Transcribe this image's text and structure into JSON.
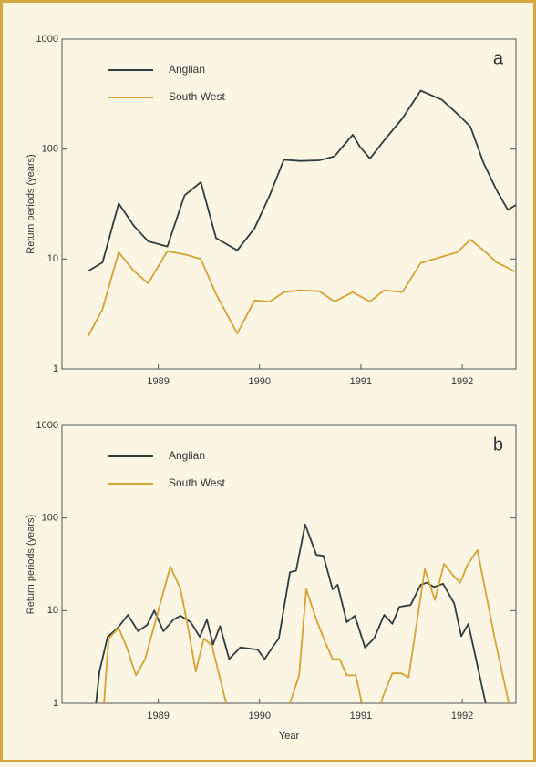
{
  "chart_data": [
    {
      "type": "line",
      "annotation": "a",
      "ylabel": "Return periods (years)",
      "log_y": true,
      "legend": "upper left",
      "x": [
        1988.31,
        1988.45,
        1988.61,
        1988.76,
        1988.9,
        1989.09,
        1989.26,
        1989.42,
        1989.57,
        1989.78,
        1989.95,
        1990.1,
        1990.24,
        1990.4,
        1990.59,
        1990.74,
        1990.92,
        1990.99,
        1991.09,
        1991.23,
        1991.41,
        1991.59,
        1991.8,
        1991.95,
        1992.08,
        1992.21,
        1992.34,
        1992.45,
        1992.53
      ],
      "series": [
        {
          "name": "Anglian",
          "color": "#2f3d3c",
          "values": [
            7.8,
            9.3,
            32,
            20,
            14.5,
            13,
            38,
            50,
            15.5,
            12,
            19,
            38,
            80,
            78,
            79,
            86,
            135,
            105,
            82,
            120,
            190,
            340,
            280,
            210,
            160,
            75,
            42,
            28,
            31
          ]
        },
        {
          "name": "South West",
          "color": "#d5a236",
          "values": [
            2.0,
            3.5,
            11.5,
            7.8,
            6,
            11.8,
            11,
            10,
            4.8,
            2.1,
            4.2,
            4.1,
            5,
            5.2,
            5.1,
            4.1,
            5.0,
            4.6,
            4.1,
            5.2,
            5.0,
            9.2,
            10.5,
            11.5,
            15,
            12,
            9.3,
            8.3,
            7.6
          ]
        }
      ],
      "xlim": [
        1988.05,
        1992.53
      ],
      "xticks": [
        1989,
        1990,
        1991,
        1992
      ],
      "ylim": [
        1,
        1000
      ],
      "yticks": [
        1,
        10,
        100,
        1000
      ]
    },
    {
      "type": "line",
      "annotation": "b",
      "xlabel": "Year",
      "ylabel": "Return periods (years)",
      "log_y": true,
      "legend": "upper left",
      "series": [
        {
          "name": "Anglian",
          "color": "#2f3d3c",
          "x": [
            1988.37,
            1988.42,
            1988.5,
            1988.6,
            1988.7,
            1988.8,
            1988.89,
            1988.96,
            1989.05,
            1989.15,
            1989.22,
            1989.32,
            1989.41,
            1989.48,
            1989.54,
            1989.61,
            1989.7,
            1989.81,
            1989.98,
            1990.05,
            1990.14,
            1990.19,
            1990.3,
            1990.36,
            1990.45,
            1990.56,
            1990.63,
            1990.72,
            1990.77,
            1990.86,
            1990.94,
            1991.04,
            1991.13,
            1991.23,
            1991.31,
            1991.38,
            1991.49,
            1991.59,
            1991.65,
            1991.72,
            1991.81,
            1991.92,
            1991.99,
            1992.06,
            1992.23,
            1992.28
          ],
          "values": [
            0.7,
            2.2,
            5.2,
            6.5,
            9,
            6,
            7,
            10,
            6,
            8,
            8.8,
            7.5,
            5.2,
            8,
            4.3,
            6.8,
            3,
            4,
            3.8,
            3,
            4.2,
            5,
            26,
            27,
            85,
            40,
            39,
            17,
            19,
            7.5,
            8.8,
            4,
            5,
            9,
            7.2,
            11,
            11.5,
            19,
            20,
            18,
            19.5,
            12,
            5.3,
            7.2,
            1.0,
            0.7
          ]
        },
        {
          "name": "South West",
          "color": "#d5a236",
          "x": [
            1988.45,
            1988.51,
            1988.61,
            1988.69,
            1988.78,
            1988.87,
            1989.12,
            1989.22,
            1989.3,
            1989.37,
            1989.45,
            1989.53,
            1989.67,
            1989.74,
            1990.23,
            1990.3,
            1990.39,
            1990.46,
            1990.56,
            1990.65,
            1990.72,
            1990.79,
            1990.86,
            1990.95,
            1991.01,
            1991.06,
            1991.15,
            1991.22,
            1991.31,
            1991.4,
            1991.47,
            1991.63,
            1991.73,
            1991.82,
            1991.91,
            1991.98,
            1992.05,
            1992.15,
            1992.32,
            1992.46,
            1992.51
          ],
          "values": [
            0.6,
            5,
            6.5,
            4,
            2,
            3,
            30,
            17,
            6,
            2.2,
            5,
            4.2,
            1,
            0.6,
            0.6,
            1,
            2,
            17,
            8,
            4.5,
            3,
            3,
            2,
            2,
            1,
            0.7,
            0.7,
            1.2,
            2.1,
            2.1,
            1.9,
            28,
            13,
            32,
            24,
            20,
            31,
            45,
            5,
            1,
            0.6
          ]
        }
      ],
      "xlim": [
        1988.05,
        1992.53
      ],
      "xticks": [
        1989,
        1990,
        1991,
        1992
      ],
      "ylim": [
        1,
        1000
      ],
      "yticks": [
        1,
        10,
        100,
        1000
      ]
    }
  ]
}
